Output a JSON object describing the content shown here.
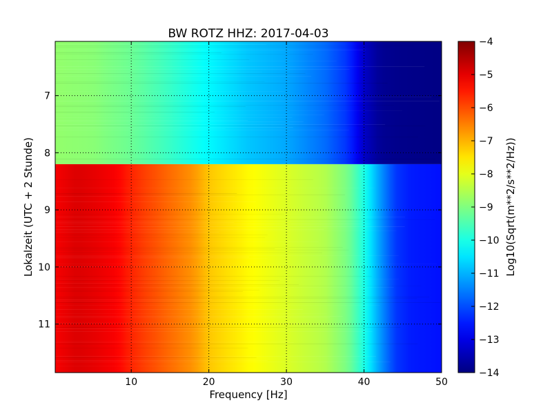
{
  "chart_data": {
    "type": "heatmap",
    "title": "BW ROTZ HHZ: 2017-04-03",
    "xlabel": "Frequency [Hz]",
    "ylabel": "Lokalzeit (UTC + 2 Stunde)",
    "xlim": [
      0.2,
      50
    ],
    "ylim": [
      11.85,
      6.05
    ],
    "y_inverted": true,
    "grid": true,
    "x_ticks": [
      10,
      20,
      30,
      40,
      50
    ],
    "y_ticks": [
      7,
      8,
      9,
      10,
      11
    ],
    "colormap": "jet",
    "colorbar": {
      "label": "Log10(Sqrt(m**2/s**2/Hz))",
      "range": [
        -14,
        -4
      ],
      "ticks": [
        -4,
        -5,
        -6,
        -7,
        -8,
        -9,
        -10,
        -11,
        -12,
        -13,
        -14
      ]
    },
    "time_blocks": [
      {
        "from_hour": 6.05,
        "to_hour": 8.2,
        "profile": {
          "frequency": [
            0,
            5,
            10,
            15,
            20,
            25,
            30,
            35,
            38,
            40,
            42,
            45,
            50
          ],
          "log10_psd": [
            -8.8,
            -8.9,
            -9.2,
            -9.7,
            -10.3,
            -10.8,
            -11.1,
            -11.7,
            -12.3,
            -13.3,
            -13.8,
            -13.9,
            -13.95
          ]
        }
      },
      {
        "from_hour": 8.2,
        "to_hour": 11.85,
        "profile": {
          "frequency": [
            0,
            3,
            5,
            8,
            10,
            12,
            15,
            18,
            20,
            25,
            30,
            35,
            38,
            40,
            42,
            44,
            46,
            50
          ],
          "log10_psd": [
            -5.2,
            -4.9,
            -5.0,
            -5.2,
            -5.6,
            -5.9,
            -6.3,
            -6.7,
            -7.2,
            -7.7,
            -8.1,
            -8.5,
            -9.1,
            -10.0,
            -11.2,
            -12.2,
            -12.5,
            -12.6
          ]
        }
      }
    ]
  }
}
